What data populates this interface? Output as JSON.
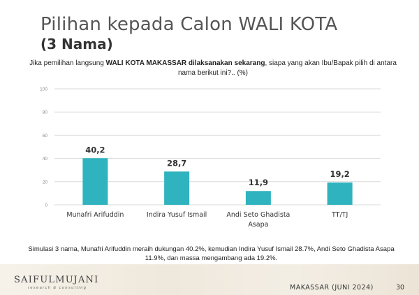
{
  "slide": {
    "title": "Pilihan kepada Calon WALI KOTA",
    "subtitle": "(3 Nama)",
    "question_pre": "Jika pemilihan langsung ",
    "question_bold": "WALI KOTA MAKASSAR dilaksanakan sekarang",
    "question_post": ", siapa yang akan Ibu/Bapak pilih di antara nama berikut ini?.. (%)",
    "footnote": "Simulasi 3 nama, Munafri Arifuddin meraih dukungan 40.2%, kemudian Indira Yusuf Ismail 28.7%, Andi Seto Ghadista Asapa 11.9%, dan massa mengambang ada 19.2%.",
    "logo_main": "SAIFULMUJANI",
    "logo_sub": "research & consulting",
    "footer_place": "MAKASSAR (JUNI 2024)",
    "page_number": "30"
  },
  "chart_data": {
    "type": "bar",
    "categories": [
      "Munafri Arifuddin",
      "Indira Yusuf Ismail",
      "Andi Seto Ghadista Asapa",
      "TT/TJ"
    ],
    "category_lines": [
      [
        "Munafri Arifuddin"
      ],
      [
        "Indira Yusuf Ismail"
      ],
      [
        "Andi Seto Ghadista",
        "Asapa"
      ],
      [
        "TT/TJ"
      ]
    ],
    "values": [
      40.2,
      28.7,
      11.9,
      19.2
    ],
    "value_labels": [
      "40,2",
      "28,7",
      "11,9",
      "19,2"
    ],
    "ylim": [
      0,
      100
    ],
    "yticks": [
      0,
      20,
      40,
      60,
      80,
      100
    ],
    "grid": true,
    "bar_color": "#2fb3bf",
    "grid_color": "#d9d9d9",
    "title": "",
    "xlabel": "",
    "ylabel": ""
  }
}
